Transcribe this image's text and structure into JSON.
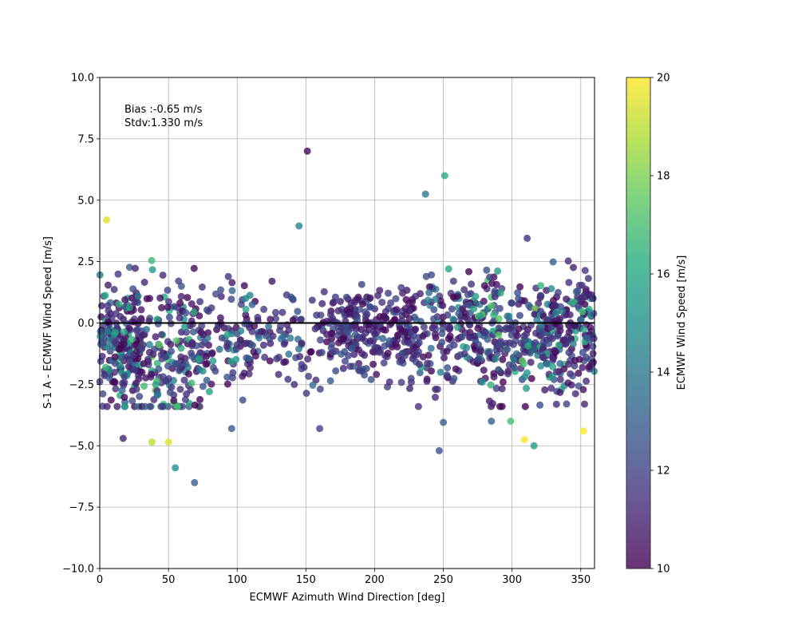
{
  "chart_data": {
    "type": "scatter",
    "xlabel": "ECMWF Azimuth Wind Direction [deg]",
    "ylabel": "S-1 A - ECMWF Wind Speed [m/s]",
    "xlim": [
      0,
      360
    ],
    "ylim": [
      -10,
      10
    ],
    "x_ticks": [
      "0",
      "50",
      "100",
      "150",
      "200",
      "250",
      "300",
      "350"
    ],
    "y_ticks": [
      "−10.0",
      "−7.5",
      "−5.0",
      "−2.5",
      "0.0",
      "2.5",
      "5.0",
      "7.5",
      "10.0"
    ],
    "grid": true,
    "reference_line_y": 0,
    "annotation": {
      "line1": "Bias :-0.65 m/s",
      "line2": "Stdv:1.330 m/s"
    },
    "colorbar": {
      "label": "ECMWF Wind Speed [m/s]",
      "range": [
        10,
        20
      ],
      "ticks": [
        "10",
        "12",
        "14",
        "16",
        "18",
        "20"
      ],
      "colormap": "viridis"
    },
    "points_note": "approx 1400 points; outliers listed exactly below, dense cloud summarised by clusters",
    "outliers": [
      {
        "x": 5,
        "y": 4.2,
        "c": 19.5
      },
      {
        "x": 151,
        "y": 7.0,
        "c": 10.2
      },
      {
        "x": 237,
        "y": 5.25,
        "c": 14.0
      },
      {
        "x": 251,
        "y": 6.0,
        "c": 16.0
      },
      {
        "x": 145,
        "y": 3.95,
        "c": 14.5
      },
      {
        "x": 311,
        "y": 3.45,
        "c": 11.5
      },
      {
        "x": 69,
        "y": -6.5,
        "c": 13.0
      },
      {
        "x": 55,
        "y": -5.9,
        "c": 15.0
      },
      {
        "x": 247,
        "y": -5.2,
        "c": 12.5
      },
      {
        "x": 316,
        "y": -5.0,
        "c": 15.5
      },
      {
        "x": 309,
        "y": -4.75,
        "c": 20.0
      },
      {
        "x": 352,
        "y": -4.4,
        "c": 20.0
      },
      {
        "x": 17,
        "y": -4.7,
        "c": 11.0
      },
      {
        "x": 38,
        "y": -4.85,
        "c": 19.0
      },
      {
        "x": 50,
        "y": -4.85,
        "c": 19.5
      },
      {
        "x": 96,
        "y": -4.3,
        "c": 13.0
      },
      {
        "x": 160,
        "y": -4.3,
        "c": 12.0
      },
      {
        "x": 250,
        "y": -4.05,
        "c": 13.0
      },
      {
        "x": 299,
        "y": -4.0,
        "c": 17.0
      },
      {
        "x": 285,
        "y": -4.0,
        "c": 13.0
      }
    ],
    "clusters": [
      {
        "x": [
          0,
          30
        ],
        "y_mean": -0.8,
        "y_sd": 1.3,
        "n": 210,
        "c": [
          10,
          17
        ]
      },
      {
        "x": [
          30,
          75
        ],
        "y_mean": -1.2,
        "y_sd": 1.4,
        "n": 190,
        "c": [
          10,
          18
        ]
      },
      {
        "x": [
          75,
          110
        ],
        "y_mean": -0.9,
        "y_sd": 1.0,
        "n": 90,
        "c": [
          10,
          16
        ]
      },
      {
        "x": [
          110,
          165
        ],
        "y_mean": -0.6,
        "y_sd": 1.0,
        "n": 90,
        "c": [
          10,
          14
        ]
      },
      {
        "x": [
          165,
          230
        ],
        "y_mean": -0.4,
        "y_sd": 0.9,
        "n": 260,
        "c": [
          10,
          13
        ]
      },
      {
        "x": [
          230,
          275
        ],
        "y_mean": -0.3,
        "y_sd": 1.2,
        "n": 150,
        "c": [
          10,
          16
        ]
      },
      {
        "x": [
          275,
          320
        ],
        "y_mean": -0.6,
        "y_sd": 1.2,
        "n": 190,
        "c": [
          10,
          18
        ]
      },
      {
        "x": [
          320,
          360
        ],
        "y_mean": -0.5,
        "y_sd": 1.1,
        "n": 230,
        "c": [
          10,
          17
        ]
      }
    ]
  }
}
